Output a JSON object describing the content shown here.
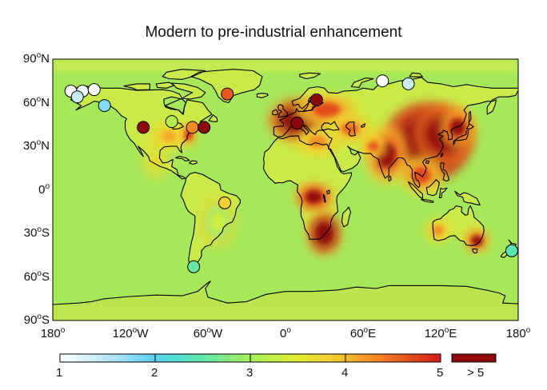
{
  "title": "Modern to pre-industrial enhancement",
  "colors": {
    "ocean": "#a6e85a",
    "land_base": "#cdea46",
    "coast": "#000000",
    "cb": [
      "#ffffff",
      "#5ad0f0",
      "#78ec9a",
      "#d8ee3a",
      "#f8c832",
      "#f27a22",
      "#d41a16",
      "#8e0a0a"
    ]
  },
  "lat_labels": [
    {
      "v": "90",
      "s": "N",
      "lat": 90
    },
    {
      "v": "60",
      "s": "N",
      "lat": 60
    },
    {
      "v": "30",
      "s": "N",
      "lat": 30
    },
    {
      "v": "0",
      "s": "",
      "lat": 0
    },
    {
      "v": "30",
      "s": "S",
      "lat": -30
    },
    {
      "v": "60",
      "s": "S",
      "lat": -60
    },
    {
      "v": "90",
      "s": "S",
      "lat": -90
    }
  ],
  "lon_labels": [
    {
      "v": "180",
      "s": "",
      "lon": -180
    },
    {
      "v": "120",
      "s": "W",
      "lon": -120
    },
    {
      "v": "60",
      "s": "W",
      "lon": -60
    },
    {
      "v": "0",
      "s": "",
      "lon": 0
    },
    {
      "v": "60",
      "s": "E",
      "lon": 60
    },
    {
      "v": "120",
      "s": "E",
      "lon": 120
    },
    {
      "v": "180",
      "s": "",
      "lon": 180
    }
  ],
  "colorbar": {
    "ticks": [
      "1",
      "2",
      "3",
      "4",
      "5"
    ],
    "extra": "> 5",
    "min": 1,
    "max": 5
  },
  "sites": [
    {
      "lon": -166,
      "lat": 68,
      "v": 1.0
    },
    {
      "lon": -157,
      "lat": 68,
      "v": 1.1
    },
    {
      "lon": -148,
      "lat": 69,
      "v": 1.0
    },
    {
      "lon": -140,
      "lat": 58,
      "v": 1.8
    },
    {
      "lon": -161,
      "lat": 64,
      "v": 1.4
    },
    {
      "lon": -110,
      "lat": 43,
      "v": 5.5
    },
    {
      "lon": -88,
      "lat": 47,
      "v": 3.0
    },
    {
      "lon": -72,
      "lat": 43,
      "v": 4.2
    },
    {
      "lon": -63,
      "lat": 43,
      "v": 5.4
    },
    {
      "lon": -45,
      "lat": 66,
      "v": 4.5
    },
    {
      "lon": -47,
      "lat": -9,
      "v": 3.7
    },
    {
      "lon": -71,
      "lat": -53,
      "v": 2.5
    },
    {
      "lon": 9,
      "lat": 46,
      "v": 5.4
    },
    {
      "lon": 24,
      "lat": 62,
      "v": 5.0
    },
    {
      "lon": 75,
      "lat": 75,
      "v": 1.0
    },
    {
      "lon": 95,
      "lat": 73,
      "v": 1.4
    },
    {
      "lon": 175,
      "lat": -42,
      "v": 2.4
    }
  ],
  "hotspots": [
    {
      "lon": 110,
      "lat": 33,
      "rx": 20,
      "ry": 16,
      "v": 6.0
    },
    {
      "lon": 123,
      "lat": 38,
      "rx": 14,
      "ry": 12,
      "v": 5.5
    },
    {
      "lon": 133,
      "lat": 43,
      "rx": 8,
      "ry": 8,
      "v": 5.0
    },
    {
      "lon": 78,
      "lat": 24,
      "rx": 10,
      "ry": 12,
      "v": 5.0
    },
    {
      "lon": 68,
      "lat": 30,
      "rx": 6,
      "ry": 5,
      "v": 4.5
    },
    {
      "lon": 10,
      "lat": 48,
      "rx": 14,
      "ry": 9,
      "v": 5.5
    },
    {
      "lon": 32,
      "lat": 55,
      "rx": 15,
      "ry": 7,
      "v": 4.6
    },
    {
      "lon": 50,
      "lat": 42,
      "rx": 10,
      "ry": 6,
      "v": 4.4
    },
    {
      "lon": 25,
      "lat": 33,
      "rx": 10,
      "ry": 6,
      "v": 4.2
    },
    {
      "lon": 30,
      "lat": -30,
      "rx": 8,
      "ry": 9,
      "v": 5.5
    },
    {
      "lon": 22,
      "lat": -5,
      "rx": 9,
      "ry": 6,
      "v": 5.2
    },
    {
      "lon": 148,
      "lat": -35,
      "rx": 6,
      "ry": 5,
      "v": 5.0
    },
    {
      "lon": 118,
      "lat": -28,
      "rx": 6,
      "ry": 5,
      "v": 4.2
    },
    {
      "lon": 105,
      "lat": 10,
      "rx": 10,
      "ry": 8,
      "v": 4.6
    },
    {
      "lon": -90,
      "lat": 37,
      "rx": 9,
      "ry": 6,
      "v": 4.0
    },
    {
      "lon": -75,
      "lat": 38,
      "rx": 4,
      "ry": 5,
      "v": 4.8
    },
    {
      "lon": -100,
      "lat": 20,
      "rx": 6,
      "ry": 7,
      "v": 3.6
    },
    {
      "lon": -52,
      "lat": -22,
      "rx": 8,
      "ry": 10,
      "v": 3.2
    }
  ]
}
